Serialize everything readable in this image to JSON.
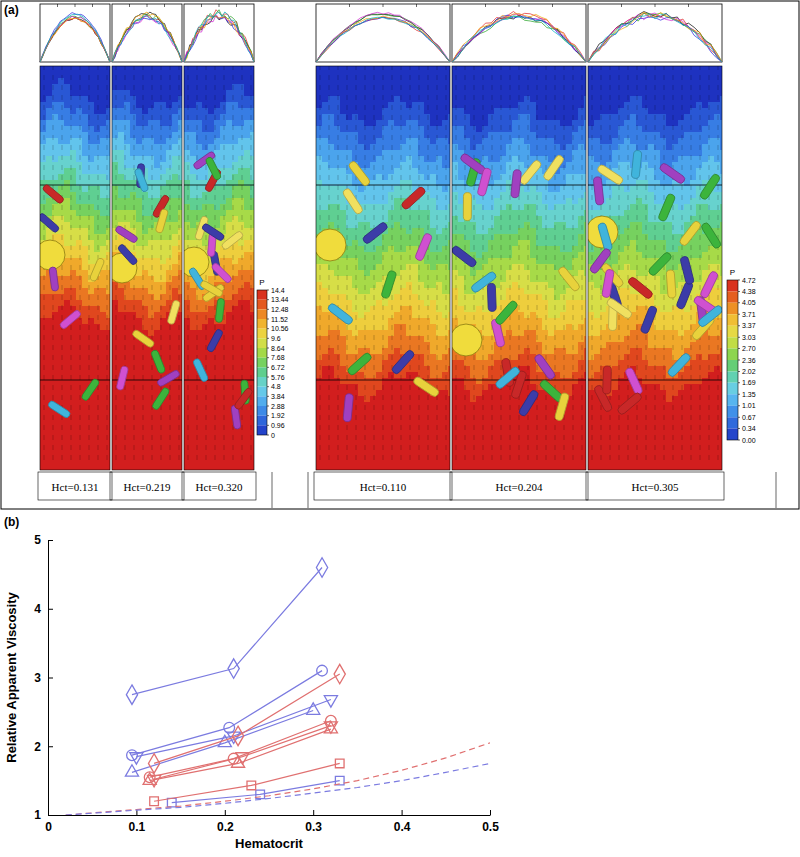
{
  "chart_data": [
    {
      "type": "simulation",
      "label": "(a)",
      "groups": [
        {
          "cases": [
            {
              "value": 0.131,
              "label": "Hct=0.131"
            },
            {
              "value": 0.219,
              "label": "Hct=0.219"
            },
            {
              "value": 0.32,
              "label": "Hct=0.320"
            }
          ],
          "colorbar": {
            "title": "P",
            "ticks": [
              14.4,
              13.44,
              12.48,
              11.52,
              10.56,
              9.6,
              8.64,
              7.68,
              6.72,
              5.76,
              4.8,
              3.84,
              2.88,
              1.92,
              0.96,
              0
            ]
          }
        },
        {
          "cases": [
            {
              "value": 0.11,
              "label": "Hct=0.110"
            },
            {
              "value": 0.204,
              "label": "Hct=0.204"
            },
            {
              "value": 0.305,
              "label": "Hct=0.305"
            }
          ],
          "colorbar": {
            "title": "P",
            "ticks": [
              4.72,
              4.38,
              4.05,
              3.71,
              3.37,
              3.03,
              {
                "value": 2.7,
                "label": "2.70"
              },
              2.36,
              2.02,
              1.69,
              1.35,
              1.01,
              0.67,
              0.34,
              {
                "value": 0,
                "label": "0.00"
              }
            ]
          }
        }
      ]
    },
    {
      "type": "line",
      "label": "(b)",
      "xlabel": "Hematocrit",
      "ylabel": "Relative Apparent Viscosity",
      "xlim": [
        0,
        0.5
      ],
      "ylim": [
        1,
        5
      ],
      "xticks": [
        0,
        0.1,
        0.2,
        0.3,
        0.4,
        0.5
      ],
      "yticks": [
        1,
        2,
        3,
        4,
        5
      ],
      "series": [
        {
          "color": "#7b7be0",
          "marker": "diamond",
          "line_style": "solid",
          "x": [
            0.095,
            0.21,
            0.31
          ],
          "values": [
            2.75,
            3.13,
            4.6
          ]
        },
        {
          "color": "#7b7be0",
          "marker": "circle",
          "line_style": "solid",
          "x": [
            0.095,
            0.205,
            0.31
          ],
          "values": [
            1.87,
            2.27,
            3.1
          ]
        },
        {
          "color": "#7b7be0",
          "marker": "triangle-up",
          "line_style": "solid",
          "x": [
            0.095,
            0.2,
            0.3
          ],
          "values": [
            1.62,
            2.05,
            2.52
          ]
        },
        {
          "color": "#7b7be0",
          "marker": "triangle-down",
          "line_style": "solid",
          "x": [
            0.1,
            0.21,
            0.32
          ],
          "values": [
            1.85,
            2.15,
            2.68
          ]
        },
        {
          "color": "#7b7be0",
          "marker": "square",
          "line_style": "solid",
          "x": [
            0.14,
            0.24,
            0.33
          ],
          "values": [
            1.18,
            1.3,
            1.5
          ]
        },
        {
          "color": "#e07070",
          "marker": "diamond",
          "line_style": "solid",
          "x": [
            0.12,
            0.215,
            0.33
          ],
          "values": [
            1.75,
            2.15,
            3.05
          ]
        },
        {
          "color": "#e07070",
          "marker": "circle",
          "line_style": "solid",
          "x": [
            0.115,
            0.21,
            0.32
          ],
          "values": [
            1.55,
            1.82,
            2.37
          ]
        },
        {
          "color": "#e07070",
          "marker": "triangle-up",
          "line_style": "solid",
          "x": [
            0.115,
            0.215,
            0.32
          ],
          "values": [
            1.5,
            1.75,
            2.25
          ]
        },
        {
          "color": "#e07070",
          "marker": "triangle-down",
          "line_style": "solid",
          "x": [
            0.12,
            0.22,
            0.32
          ],
          "values": [
            1.52,
            1.85,
            2.3
          ]
        },
        {
          "color": "#e07070",
          "marker": "square",
          "line_style": "solid",
          "x": [
            0.12,
            0.23,
            0.33
          ],
          "values": [
            1.2,
            1.43,
            1.75
          ]
        },
        {
          "color": "#e07070",
          "marker": "none",
          "line_style": "dashed",
          "x": [
            0.02,
            0.1,
            0.15,
            0.2,
            0.25,
            0.3,
            0.35,
            0.4,
            0.45,
            0.5
          ],
          "values": [
            1.0,
            1.08,
            1.13,
            1.2,
            1.28,
            1.38,
            1.5,
            1.65,
            1.83,
            2.05
          ]
        },
        {
          "color": "#7b7be0",
          "marker": "none",
          "line_style": "dashed",
          "x": [
            0.02,
            0.1,
            0.15,
            0.2,
            0.25,
            0.3,
            0.35,
            0.4,
            0.45,
            0.5
          ],
          "values": [
            1.0,
            1.07,
            1.11,
            1.17,
            1.24,
            1.32,
            1.4,
            1.5,
            1.62,
            1.75
          ]
        }
      ]
    }
  ]
}
